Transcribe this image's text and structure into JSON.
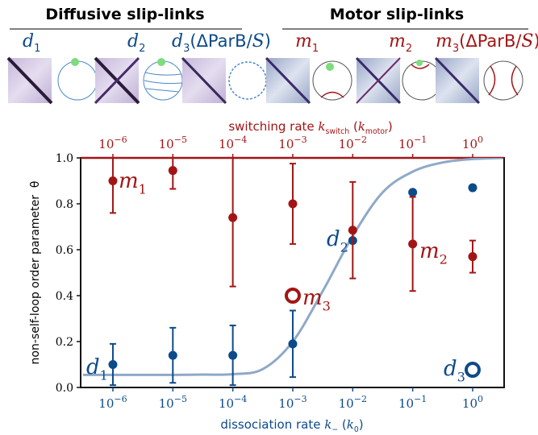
{
  "headers": {
    "diffusive": "Diffusive slip-links",
    "motor": "Motor slip-links"
  },
  "panels": [
    [
      {
        "text": "d",
        "style": "math"
      },
      {
        "text": "1",
        "style": "sub"
      }
    ],
    [
      {
        "text": "d",
        "style": "math"
      },
      {
        "text": "2",
        "style": "sub"
      }
    ],
    [
      {
        "text": "d",
        "style": "math"
      },
      {
        "text": "3",
        "style": "sub"
      },
      {
        "text": "(ΔParB/"
      },
      {
        "text": "S",
        "style": "math"
      },
      {
        "text": ")"
      }
    ],
    [
      {
        "text": "m",
        "style": "math"
      },
      {
        "text": "1",
        "style": "sub"
      }
    ],
    [
      {
        "text": "m",
        "style": "math"
      },
      {
        "text": "2",
        "style": "sub"
      }
    ],
    [
      {
        "text": "m",
        "style": "math"
      },
      {
        "text": "3",
        "style": "sub"
      },
      {
        "text": "(ΔParB/"
      },
      {
        "text": "S",
        "style": "math"
      },
      {
        "text": ")"
      }
    ]
  ],
  "chart_data": {
    "type": "scatter",
    "log_x": true,
    "xlabel": [
      {
        "text": "dissociation rate "
      },
      {
        "text": "k",
        "style": "math"
      },
      {
        "text": "−",
        "style": "sub"
      },
      {
        "text": " ("
      },
      {
        "text": "k",
        "style": "math"
      },
      {
        "text": "0",
        "style": "sub"
      },
      {
        "text": ")"
      }
    ],
    "x2label": [
      {
        "text": "switching rate "
      },
      {
        "text": "k",
        "style": "math"
      },
      {
        "text": "switch",
        "style": "sub"
      },
      {
        "text": " ("
      },
      {
        "text": "k",
        "style": "math"
      },
      {
        "text": "motor",
        "style": "sub"
      },
      {
        "text": ")"
      }
    ],
    "ylabel": "non-self-loop order parameter  θ",
    "xlim": [
      2.9e-07,
      3.35
    ],
    "ylim": [
      0,
      1
    ],
    "xticks": [
      {
        "value": 1e-06,
        "label": "10−6"
      },
      {
        "value": 1e-05,
        "label": "10−5"
      },
      {
        "value": 0.0001,
        "label": "10−4"
      },
      {
        "value": 0.001,
        "label": "10−3"
      },
      {
        "value": 0.01,
        "label": "10−2"
      },
      {
        "value": 0.1,
        "label": "10−1"
      },
      {
        "value": 1,
        "label": "100"
      }
    ],
    "x2ticks": [
      {
        "value": 1e-06,
        "label": "10−6"
      },
      {
        "value": 1e-05,
        "label": "10−5"
      },
      {
        "value": 0.0001,
        "label": "10−4"
      },
      {
        "value": 0.001,
        "label": "10−3"
      },
      {
        "value": 0.01,
        "label": "10−2"
      },
      {
        "value": 0.1,
        "label": "10−1"
      },
      {
        "value": 1,
        "label": "100"
      }
    ],
    "yticks": [
      {
        "value": 0,
        "label": "0.0"
      },
      {
        "value": 0.2,
        "label": "0.2"
      },
      {
        "value": 0.4,
        "label": "0.4"
      },
      {
        "value": 0.6,
        "label": "0.6"
      },
      {
        "value": 0.8,
        "label": "0.8"
      },
      {
        "value": 1,
        "label": "1.0"
      }
    ],
    "x": [
      1e-06,
      1e-05,
      0.0001,
      0.001,
      0.01,
      0.1,
      1
    ],
    "series": [
      {
        "color": "#a31515",
        "values": [
          0.9,
          0.945,
          0.74,
          0.8,
          0.685,
          0.625,
          0.57
        ],
        "errors": [
          0.14,
          0.08,
          0.3,
          0.175,
          0.21,
          0.205,
          0.07
        ]
      },
      {
        "color": "#0d4a8a",
        "values": [
          0.1,
          0.14,
          0.14,
          0.19,
          0.64,
          0.85,
          0.87
        ],
        "errors": [
          0.09,
          0.12,
          0.13,
          0.145,
          null,
          null,
          null
        ]
      }
    ],
    "curve": {
      "color": "#8ea9c8",
      "x": [
        3.162e-07,
        1e-06,
        3.162e-06,
        1e-05,
        3.162e-05,
        0.0001,
        0.0003162,
        0.001,
        0.003162,
        0.01,
        0.03162,
        0.1,
        0.3162,
        1,
        3.162
      ],
      "values": [
        0.055,
        0.055,
        0.055,
        0.055,
        0.056,
        0.058,
        0.08,
        0.2,
        0.42,
        0.66,
        0.85,
        0.94,
        0.98,
        0.995,
        1.0
      ]
    },
    "markers": [
      {
        "x": 0.001,
        "y": 0.4,
        "color": "#a31515"
      },
      {
        "x": 1,
        "y": 0.077,
        "color": "#0d4a8a"
      }
    ],
    "annotations": [
      {
        "color": "#0d4a8a",
        "parts": [
          {
            "text": "d",
            "style": "math"
          },
          {
            "text": "1",
            "style": "sub"
          }
        ]
      },
      {
        "color": "#a31515",
        "parts": [
          {
            "text": "m",
            "style": "math"
          },
          {
            "text": "1",
            "style": "sub"
          }
        ]
      },
      {
        "color": "#0d4a8a",
        "parts": [
          {
            "text": "d",
            "style": "math"
          },
          {
            "text": "2",
            "style": "sub"
          }
        ]
      },
      {
        "color": "#a31515",
        "parts": [
          {
            "text": "m",
            "style": "math"
          },
          {
            "text": "2",
            "style": "sub"
          }
        ]
      },
      {
        "color": "#a31515",
        "parts": [
          {
            "text": "m",
            "style": "math"
          },
          {
            "text": "3",
            "style": "sub"
          }
        ]
      },
      {
        "color": "#0d4a8a",
        "parts": [
          {
            "text": "d",
            "style": "math"
          },
          {
            "text": "3",
            "style": "sub"
          }
        ]
      }
    ]
  }
}
